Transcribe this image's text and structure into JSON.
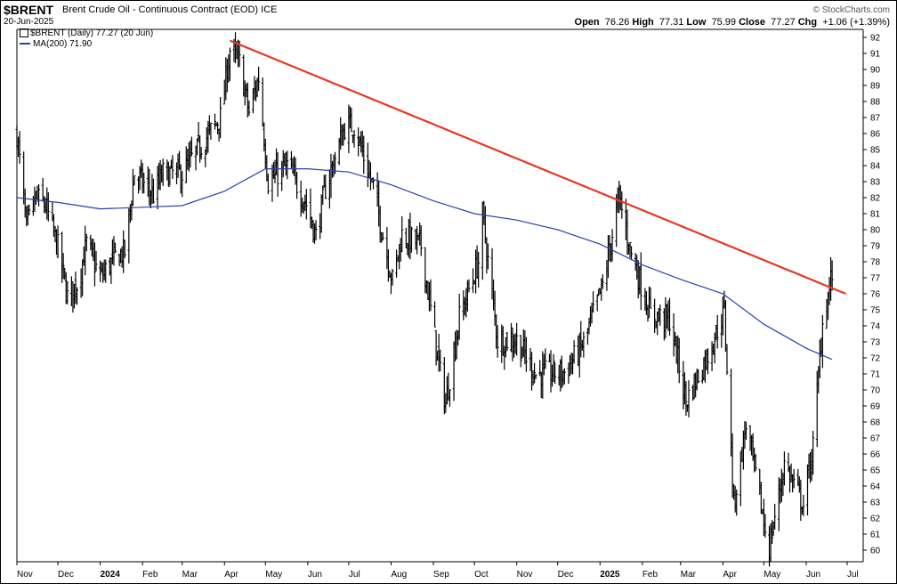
{
  "header": {
    "symbol": "$BRENT",
    "description": "Brent Crude Oil - Continuous Contract (EOD) ICE",
    "date": "20-Jun-2025",
    "watermark": "© StockCharts.com",
    "open_label": "Open",
    "open": "76.26",
    "high_label": "High",
    "high": "77.31",
    "low_label": "Low",
    "low": "75.99",
    "close_label": "Close",
    "close": "77.27",
    "chg_label": "Chg",
    "chg": "+1.06 (+1.39%)"
  },
  "legend": {
    "price": "$BRENT (Daily) 77.27 (20 Jun)",
    "ma": "MA(200) 71.90"
  },
  "colors": {
    "price_bars": "#000000",
    "ma_line": "#2b3fb0",
    "trendline": "#e8371f",
    "grid": "#dddddd"
  },
  "chart_data": {
    "type": "ohlc-bar",
    "grid": false,
    "y_axis_side": "right",
    "ylim": [
      59,
      92
    ],
    "y_ticks": [
      60,
      61,
      62,
      63,
      64,
      65,
      66,
      67,
      68,
      69,
      70,
      71,
      72,
      73,
      74,
      75,
      76,
      77,
      78,
      79,
      80,
      81,
      82,
      83,
      84,
      85,
      86,
      87,
      88,
      89,
      90,
      91,
      92
    ],
    "x_tick_labels": [
      "Nov",
      "Dec",
      "2024",
      "Feb",
      "Mar",
      "Apr",
      "May",
      "Jun",
      "Jul",
      "Aug",
      "Sep",
      "Oct",
      "Nov",
      "Dec",
      "2025",
      "Feb",
      "Mar",
      "Apr",
      "May",
      "Jun",
      "Jul"
    ],
    "x_tick_dates": [
      "2023-11-01",
      "2023-12-01",
      "2024-01-01",
      "2024-02-01",
      "2024-03-01",
      "2024-04-01",
      "2024-05-01",
      "2024-06-01",
      "2024-07-01",
      "2024-08-01",
      "2024-09-01",
      "2024-10-01",
      "2024-11-01",
      "2024-12-01",
      "2025-01-01",
      "2025-02-01",
      "2025-03-01",
      "2025-04-01",
      "2025-05-01",
      "2025-06-01",
      "2025-07-01"
    ],
    "x_range": [
      "2023-11-01",
      "2025-07-01"
    ],
    "price_close_approx": [
      {
        "date": "2023-11-01",
        "close": 86.0
      },
      {
        "date": "2023-11-08",
        "close": 80.0
      },
      {
        "date": "2023-11-15",
        "close": 82.0
      },
      {
        "date": "2023-11-22",
        "close": 81.5
      },
      {
        "date": "2023-12-01",
        "close": 78.9
      },
      {
        "date": "2023-12-08",
        "close": 75.8
      },
      {
        "date": "2023-12-15",
        "close": 76.6
      },
      {
        "date": "2023-12-22",
        "close": 79.1
      },
      {
        "date": "2024-01-01",
        "close": 77.0
      },
      {
        "date": "2024-01-12",
        "close": 78.3
      },
      {
        "date": "2024-01-19",
        "close": 78.6
      },
      {
        "date": "2024-01-26",
        "close": 83.5
      },
      {
        "date": "2024-02-09",
        "close": 82.2
      },
      {
        "date": "2024-02-16",
        "close": 83.5
      },
      {
        "date": "2024-03-01",
        "close": 83.5
      },
      {
        "date": "2024-03-15",
        "close": 85.3
      },
      {
        "date": "2024-03-29",
        "close": 87.0
      },
      {
        "date": "2024-04-05",
        "close": 91.2
      },
      {
        "date": "2024-04-12",
        "close": 90.4
      },
      {
        "date": "2024-04-19",
        "close": 87.3
      },
      {
        "date": "2024-04-26",
        "close": 89.5
      },
      {
        "date": "2024-05-03",
        "close": 83.0
      },
      {
        "date": "2024-05-17",
        "close": 84.0
      },
      {
        "date": "2024-05-31",
        "close": 81.6
      },
      {
        "date": "2024-06-07",
        "close": 79.6
      },
      {
        "date": "2024-06-14",
        "close": 82.6
      },
      {
        "date": "2024-06-28",
        "close": 86.4
      },
      {
        "date": "2024-07-05",
        "close": 86.5
      },
      {
        "date": "2024-07-19",
        "close": 82.6
      },
      {
        "date": "2024-08-02",
        "close": 76.8
      },
      {
        "date": "2024-08-09",
        "close": 79.7
      },
      {
        "date": "2024-08-23",
        "close": 79.0
      },
      {
        "date": "2024-09-06",
        "close": 71.0
      },
      {
        "date": "2024-09-10",
        "close": 69.2
      },
      {
        "date": "2024-09-20",
        "close": 74.5
      },
      {
        "date": "2024-10-04",
        "close": 78.0
      },
      {
        "date": "2024-10-07",
        "close": 80.9
      },
      {
        "date": "2024-10-18",
        "close": 73.1
      },
      {
        "date": "2024-11-01",
        "close": 73.1
      },
      {
        "date": "2024-11-15",
        "close": 71.0
      },
      {
        "date": "2024-12-06",
        "close": 71.1
      },
      {
        "date": "2024-12-20",
        "close": 72.9
      },
      {
        "date": "2025-01-03",
        "close": 76.5
      },
      {
        "date": "2025-01-15",
        "close": 82.0
      },
      {
        "date": "2025-01-24",
        "close": 78.5
      },
      {
        "date": "2025-02-07",
        "close": 74.7
      },
      {
        "date": "2025-02-21",
        "close": 74.4
      },
      {
        "date": "2025-03-05",
        "close": 69.3
      },
      {
        "date": "2025-03-21",
        "close": 72.2
      },
      {
        "date": "2025-04-02",
        "close": 74.9
      },
      {
        "date": "2025-04-09",
        "close": 62.8
      },
      {
        "date": "2025-04-18",
        "close": 67.9
      },
      {
        "date": "2025-05-02",
        "close": 61.3
      },
      {
        "date": "2025-05-05",
        "close": 60.2
      },
      {
        "date": "2025-05-16",
        "close": 65.4
      },
      {
        "date": "2025-05-30",
        "close": 62.8
      },
      {
        "date": "2025-06-06",
        "close": 66.5
      },
      {
        "date": "2025-06-13",
        "close": 74.2
      },
      {
        "date": "2025-06-20",
        "close": 77.27
      }
    ],
    "ma200": [
      {
        "date": "2023-11-01",
        "v": 82.0
      },
      {
        "date": "2023-12-01",
        "v": 81.7
      },
      {
        "date": "2024-01-01",
        "v": 81.3
      },
      {
        "date": "2024-02-01",
        "v": 81.4
      },
      {
        "date": "2024-03-01",
        "v": 81.5
      },
      {
        "date": "2024-04-01",
        "v": 82.4
      },
      {
        "date": "2024-05-01",
        "v": 83.8
      },
      {
        "date": "2024-06-01",
        "v": 83.8
      },
      {
        "date": "2024-07-01",
        "v": 83.6
      },
      {
        "date": "2024-08-01",
        "v": 82.8
      },
      {
        "date": "2024-09-01",
        "v": 81.8
      },
      {
        "date": "2024-10-01",
        "v": 81.0
      },
      {
        "date": "2024-11-01",
        "v": 80.6
      },
      {
        "date": "2024-12-01",
        "v": 80.0
      },
      {
        "date": "2025-01-01",
        "v": 79.1
      },
      {
        "date": "2025-02-01",
        "v": 77.8
      },
      {
        "date": "2025-03-01",
        "v": 76.9
      },
      {
        "date": "2025-04-01",
        "v": 76.0
      },
      {
        "date": "2025-05-01",
        "v": 74.1
      },
      {
        "date": "2025-06-01",
        "v": 72.6
      },
      {
        "date": "2025-06-20",
        "v": 71.9
      }
    ],
    "trendline": {
      "from": {
        "date": "2024-04-05",
        "v": 91.8
      },
      "to": {
        "date": "2025-06-30",
        "v": 76.0
      }
    }
  }
}
